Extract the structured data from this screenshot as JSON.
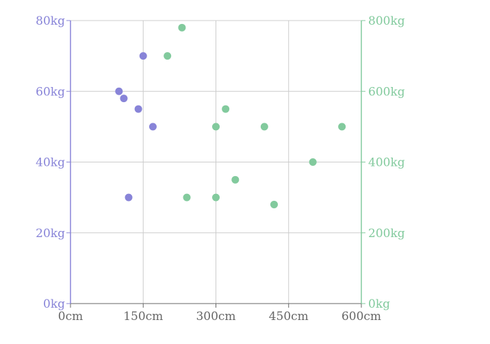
{
  "chart_data": {
    "type": "scatter",
    "colors": {
      "left_axis": "#8884d8",
      "right_axis": "#82ca9d",
      "grid": "#cccccc",
      "x_axis": "#666666"
    },
    "grid": true,
    "x_axis": {
      "ticks": [
        0,
        150,
        300,
        450,
        600
      ],
      "tick_labels": [
        "0cm",
        "150cm",
        "300cm",
        "450cm",
        "600cm"
      ],
      "range": [
        0,
        600
      ]
    },
    "y_left": {
      "ticks": [
        0,
        20,
        40,
        60,
        80
      ],
      "tick_labels": [
        "0kg",
        "20kg",
        "40kg",
        "60kg",
        "80kg"
      ],
      "range": [
        0,
        80
      ]
    },
    "y_right": {
      "ticks": [
        0,
        200,
        400,
        600,
        800
      ],
      "tick_labels": [
        "0kg",
        "200kg",
        "400kg",
        "600kg",
        "800kg"
      ],
      "range": [
        0,
        800
      ]
    },
    "series": [
      {
        "axis": "left",
        "color": "#8884d8",
        "points": [
          {
            "x": 100,
            "y": 60
          },
          {
            "x": 120,
            "y": 30
          },
          {
            "x": 170,
            "y": 50
          },
          {
            "x": 140,
            "y": 55
          },
          {
            "x": 150,
            "y": 70
          },
          {
            "x": 110,
            "y": 58
          }
        ]
      },
      {
        "axis": "right",
        "color": "#82ca9d",
        "points": [
          {
            "x": 200,
            "y": 700
          },
          {
            "x": 230,
            "y": 780
          },
          {
            "x": 240,
            "y": 300
          },
          {
            "x": 300,
            "y": 300
          },
          {
            "x": 300,
            "y": 500
          },
          {
            "x": 320,
            "y": 550
          },
          {
            "x": 340,
            "y": 350
          },
          {
            "x": 400,
            "y": 500
          },
          {
            "x": 420,
            "y": 280
          },
          {
            "x": 500,
            "y": 400
          },
          {
            "x": 560,
            "y": 500
          }
        ]
      }
    ]
  }
}
